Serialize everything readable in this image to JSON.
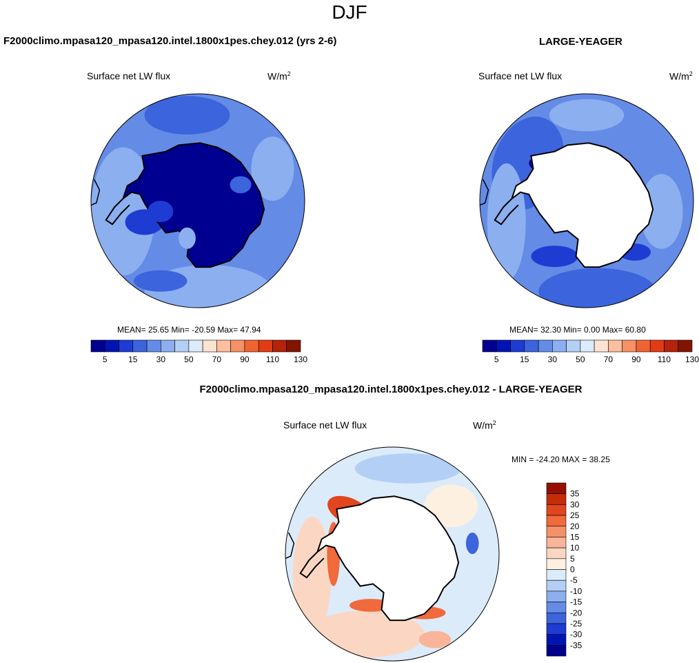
{
  "page": {
    "season": "DJF"
  },
  "colors": {
    "land": "#ffffff",
    "coast": "#000000",
    "abs_palette": [
      "#000090",
      "#0014b4",
      "#1e3cd2",
      "#3c64dc",
      "#648ce6",
      "#8caff0",
      "#b4cff5",
      "#dcebfa",
      "#fde3d2",
      "#fbbfa0",
      "#f59164",
      "#f06432",
      "#e13c14",
      "#b4230a",
      "#821400"
    ],
    "diff_palette": [
      "#00008c",
      "#0014b4",
      "#1e3cd2",
      "#3c64dc",
      "#648ce6",
      "#8caff0",
      "#b4cff5",
      "#dcebfa",
      "#fdf0e1",
      "#fbd7c3",
      "#f9b499",
      "#f5916a",
      "#f06a3c",
      "#e1461e",
      "#c32d0a",
      "#960f00"
    ]
  },
  "chart_data": [
    {
      "type": "heatmap",
      "projection": "south-polar-stereographic",
      "title": "F2000climo.mpasa120_mpasa120.intel.1800x1pes.chey.012 (yrs 2-6)",
      "variable": "Surface net LW flux",
      "units": "W/m",
      "units_superscript": "2",
      "stats_text": "MEAN=  25.65  Min= -20.59  Max=  47.94",
      "mean": 25.65,
      "min": -20.59,
      "max": 47.94,
      "colorbar_levels": [
        5,
        10,
        15,
        20,
        30,
        40,
        50,
        60,
        70,
        80,
        90,
        100,
        110,
        120,
        130
      ],
      "colorbar_ticks": [
        "5",
        "15",
        "30",
        "50",
        "70",
        "90",
        "110",
        "130"
      ]
    },
    {
      "type": "heatmap",
      "projection": "south-polar-stereographic",
      "title": "LARGE-YEAGER",
      "variable": "Surface net LW flux",
      "units": "W/m",
      "units_superscript": "2",
      "stats_text": "MEAN=  32.30  Min=   0.00  Max=  60.80",
      "mean": 32.3,
      "min": 0.0,
      "max": 60.8,
      "colorbar_levels": [
        5,
        10,
        15,
        20,
        30,
        40,
        50,
        60,
        70,
        80,
        90,
        100,
        110,
        120,
        130
      ],
      "colorbar_ticks": [
        "5",
        "15",
        "30",
        "50",
        "70",
        "90",
        "110",
        "130"
      ]
    },
    {
      "type": "heatmap",
      "projection": "south-polar-stereographic",
      "title": "F2000climo.mpasa120_mpasa120.intel.1800x1pes.chey.012 - LARGE-YEAGER",
      "variable": "Surface net LW flux",
      "units": "W/m",
      "units_superscript": "2",
      "stats_text": "MIN = -24.20 MAX =  38.25",
      "min": -24.2,
      "max": 38.25,
      "colorbar_levels": [
        -35,
        -30,
        -25,
        -20,
        -15,
        -10,
        -5,
        0,
        5,
        10,
        15,
        20,
        25,
        30,
        35
      ],
      "colorbar_ticks": [
        "35",
        "30",
        "25",
        "20",
        "15",
        "10",
        "5",
        "0",
        "-5",
        "-10",
        "-15",
        "-20",
        "-25",
        "-30",
        "-35"
      ]
    }
  ]
}
